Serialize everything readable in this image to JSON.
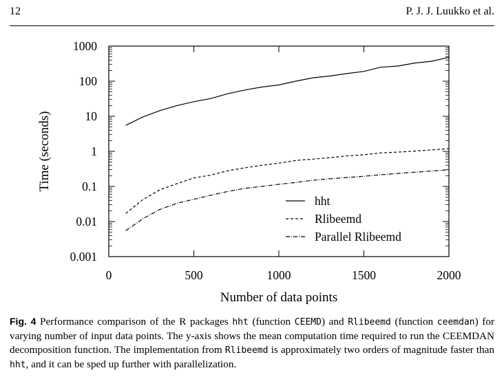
{
  "header": {
    "page_number": "12",
    "authors": "P. J. J. Luukko et al."
  },
  "chart_data": {
    "type": "line",
    "xlabel": "Number of data points",
    "ylabel": "Time (seconds)",
    "xlim": [
      0,
      2000
    ],
    "ylim": [
      0.001,
      1000
    ],
    "yscale": "log",
    "x_ticks": [
      "0",
      "500",
      "1000",
      "1500",
      "2000"
    ],
    "y_ticks": [
      "0.001",
      "0.01",
      "0.1",
      "1",
      "10",
      "100",
      "1000"
    ],
    "legend_position": "bottom-right",
    "grid": false,
    "series": [
      {
        "name": "hht",
        "style": "solid",
        "x": [
          100,
          200,
          300,
          400,
          500,
          600,
          700,
          800,
          900,
          1000,
          1100,
          1200,
          1300,
          1400,
          1500,
          1600,
          1700,
          1800,
          1900,
          2000
        ],
        "y": [
          5.5,
          9.5,
          14.5,
          20,
          26,
          32,
          44,
          56,
          68,
          78,
          100,
          125,
          140,
          165,
          190,
          250,
          270,
          330,
          370,
          480
        ]
      },
      {
        "name": "Rlibeemd",
        "style": "dashed",
        "x": [
          100,
          200,
          300,
          400,
          500,
          600,
          700,
          800,
          900,
          1000,
          1100,
          1200,
          1300,
          1400,
          1500,
          1600,
          1700,
          1800,
          1900,
          2000
        ],
        "y": [
          0.017,
          0.042,
          0.08,
          0.12,
          0.175,
          0.21,
          0.28,
          0.34,
          0.4,
          0.46,
          0.55,
          0.6,
          0.66,
          0.74,
          0.8,
          0.9,
          0.95,
          1.02,
          1.1,
          1.2
        ]
      },
      {
        "name": "Parallel Rlibeemd",
        "style": "dash-dot",
        "x": [
          100,
          200,
          300,
          400,
          500,
          600,
          700,
          800,
          900,
          1000,
          1100,
          1200,
          1300,
          1400,
          1500,
          1600,
          1700,
          1800,
          1900,
          2000
        ],
        "y": [
          0.0055,
          0.012,
          0.022,
          0.033,
          0.043,
          0.056,
          0.072,
          0.088,
          0.1,
          0.115,
          0.13,
          0.15,
          0.165,
          0.18,
          0.195,
          0.215,
          0.235,
          0.255,
          0.275,
          0.3
        ]
      }
    ]
  },
  "caption": {
    "label": "Fig. 4",
    "parts": [
      " Performance comparison of the R packages ",
      "hht",
      " (function ",
      "CEEMD",
      ") and ",
      "Rlibeemd",
      " (function ",
      "ceemdan",
      ") for varying number of input data points. The y-axis shows the mean computation time required to run the CEEMDAN decomposition function. The implementation from ",
      "Rlibeemd",
      " is approximately two orders of magnitude faster than ",
      "hht",
      ", and it can be sped up further with parallelization."
    ]
  }
}
